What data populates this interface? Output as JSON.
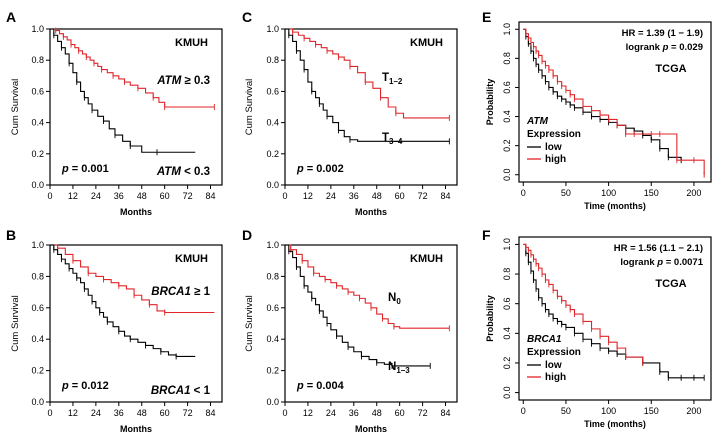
{
  "chart_data": [
    {
      "type": "line",
      "panel": "A",
      "cohort": "KMUH",
      "xlabel": "Months",
      "ylabel": "Cum Survival",
      "xlim": [
        0,
        90
      ],
      "ylim": [
        0,
        1.0
      ],
      "xticks": [
        "0",
        "12",
        "24",
        "36",
        "48",
        "60",
        "72",
        "84"
      ],
      "yticks": [
        "0.0",
        "0.2",
        "0.4",
        "0.6",
        "0.8",
        "1.0"
      ],
      "p_text": "= 0.001",
      "series": [
        {
          "name": "ATM ≥ 0.3",
          "gene": "ATM",
          "op": "≥ 0.3",
          "color": "#e0262a",
          "x": [
            0,
            3,
            5,
            7,
            9,
            11,
            13,
            15,
            17,
            19,
            21,
            23,
            25,
            27,
            30,
            33,
            36,
            39,
            42,
            46,
            50,
            54,
            57,
            60,
            72,
            86
          ],
          "y": [
            1.0,
            0.99,
            0.97,
            0.95,
            0.93,
            0.9,
            0.88,
            0.86,
            0.84,
            0.82,
            0.8,
            0.78,
            0.76,
            0.74,
            0.72,
            0.7,
            0.68,
            0.66,
            0.64,
            0.62,
            0.59,
            0.56,
            0.53,
            0.5,
            0.5,
            0.5
          ]
        },
        {
          "name": "ATM < 0.3",
          "gene": "ATM",
          "op": "< 0.3",
          "color": "#000000",
          "x": [
            0,
            2,
            4,
            6,
            8,
            10,
            12,
            14,
            16,
            18,
            20,
            22,
            25,
            28,
            31,
            34,
            38,
            42,
            48,
            56,
            76
          ],
          "y": [
            1.0,
            0.96,
            0.92,
            0.88,
            0.84,
            0.78,
            0.72,
            0.66,
            0.6,
            0.56,
            0.52,
            0.48,
            0.44,
            0.41,
            0.36,
            0.32,
            0.28,
            0.25,
            0.21,
            0.21,
            0.21
          ]
        }
      ]
    },
    {
      "type": "line",
      "panel": "C",
      "cohort": "KMUH",
      "xlabel": "Months",
      "ylabel": "Cum Survival",
      "xlim": [
        0,
        90
      ],
      "ylim": [
        0,
        1.0
      ],
      "xticks": [
        "0",
        "12",
        "24",
        "36",
        "48",
        "60",
        "72",
        "84"
      ],
      "yticks": [
        "0.0",
        "0.2",
        "0.4",
        "0.6",
        "0.8",
        "1.0"
      ],
      "p_text": "= 0.002",
      "series": [
        {
          "name": "T1–2",
          "main": "T",
          "sub": "1–2",
          "color": "#e0262a",
          "x": [
            0,
            4,
            7,
            10,
            13,
            16,
            19,
            22,
            25,
            28,
            31,
            34,
            38,
            42,
            46,
            50,
            54,
            58,
            62,
            86
          ],
          "y": [
            1.0,
            0.98,
            0.96,
            0.94,
            0.92,
            0.9,
            0.88,
            0.86,
            0.84,
            0.82,
            0.8,
            0.76,
            0.72,
            0.66,
            0.62,
            0.56,
            0.5,
            0.46,
            0.43,
            0.43
          ]
        },
        {
          "name": "T3–4",
          "main": "T",
          "sub": "3–4",
          "color": "#000000",
          "x": [
            0,
            2,
            4,
            6,
            8,
            10,
            12,
            14,
            16,
            18,
            20,
            22,
            25,
            28,
            31,
            34,
            38,
            86
          ],
          "y": [
            1.0,
            0.96,
            0.92,
            0.86,
            0.8,
            0.74,
            0.66,
            0.6,
            0.56,
            0.52,
            0.48,
            0.44,
            0.4,
            0.35,
            0.31,
            0.29,
            0.28,
            0.28
          ]
        }
      ]
    },
    {
      "type": "line",
      "panel": "E",
      "cohort": "TCGA",
      "xlabel": "Time (months)",
      "ylabel": "Probability",
      "xlim": [
        -5,
        220
      ],
      "ylim": [
        -0.05,
        1.05
      ],
      "xticks": [
        "0",
        "50",
        "100",
        "150",
        "200"
      ],
      "yticks": [
        "0.0",
        "0.2",
        "0.4",
        "0.6",
        "0.8",
        "1.0"
      ],
      "hr": "HR = 1.39 (1 − 1.9)",
      "logrank": "logrank",
      "p_text": "= 0.029",
      "legend_gene": "ATM",
      "legend_title": "Expression",
      "series": [
        {
          "name": "low",
          "color": "#000000",
          "x": [
            0,
            3,
            6,
            9,
            12,
            15,
            18,
            22,
            26,
            30,
            35,
            40,
            45,
            50,
            55,
            60,
            70,
            80,
            90,
            100,
            110,
            120,
            130,
            140,
            150,
            160,
            170,
            185
          ],
          "y": [
            1.0,
            0.95,
            0.9,
            0.85,
            0.8,
            0.76,
            0.72,
            0.68,
            0.64,
            0.6,
            0.57,
            0.54,
            0.52,
            0.5,
            0.48,
            0.46,
            0.43,
            0.4,
            0.38,
            0.36,
            0.34,
            0.32,
            0.3,
            0.27,
            0.24,
            0.18,
            0.12,
            0.1
          ]
        },
        {
          "name": "high",
          "color": "#e0262a",
          "x": [
            0,
            3,
            6,
            9,
            12,
            15,
            18,
            22,
            26,
            30,
            35,
            40,
            45,
            50,
            55,
            60,
            70,
            80,
            90,
            100,
            110,
            120,
            130,
            150,
            160,
            180,
            200,
            212
          ],
          "y": [
            1.0,
            0.97,
            0.94,
            0.91,
            0.88,
            0.85,
            0.82,
            0.78,
            0.75,
            0.72,
            0.68,
            0.64,
            0.61,
            0.58,
            0.55,
            0.52,
            0.47,
            0.44,
            0.41,
            0.38,
            0.34,
            0.28,
            0.28,
            0.28,
            0.28,
            0.1,
            0.1,
            0.0
          ]
        }
      ]
    },
    {
      "type": "line",
      "panel": "B",
      "cohort": "KMUH",
      "xlabel": "Months",
      "ylabel": "Cum Survival",
      "xlim": [
        0,
        90
      ],
      "ylim": [
        0,
        1.0
      ],
      "xticks": [
        "0",
        "12",
        "24",
        "36",
        "48",
        "60",
        "72",
        "84"
      ],
      "yticks": [
        "0.0",
        "0.2",
        "0.4",
        "0.6",
        "0.8",
        "1.0"
      ],
      "p_text": "= 0.012",
      "series": [
        {
          "name": "BRCA1 ≥ 1",
          "gene": "BRCA1",
          "op": "≥ 1",
          "color": "#e0262a",
          "x": [
            0,
            4,
            8,
            12,
            16,
            20,
            24,
            28,
            32,
            36,
            40,
            44,
            48,
            52,
            56,
            60,
            86
          ],
          "y": [
            1.0,
            0.98,
            0.94,
            0.9,
            0.86,
            0.82,
            0.8,
            0.78,
            0.76,
            0.74,
            0.72,
            0.68,
            0.65,
            0.62,
            0.58,
            0.57,
            0.57
          ]
        },
        {
          "name": "BRCA1 < 1",
          "gene": "BRCA1",
          "op": "< 1",
          "color": "#000000",
          "x": [
            0,
            2,
            4,
            6,
            8,
            10,
            12,
            14,
            16,
            18,
            20,
            22,
            24,
            26,
            28,
            30,
            33,
            36,
            39,
            42,
            46,
            50,
            54,
            58,
            62,
            66,
            76
          ],
          "y": [
            1.0,
            0.97,
            0.94,
            0.91,
            0.88,
            0.85,
            0.82,
            0.79,
            0.76,
            0.72,
            0.68,
            0.64,
            0.6,
            0.57,
            0.54,
            0.51,
            0.48,
            0.45,
            0.42,
            0.4,
            0.38,
            0.36,
            0.34,
            0.32,
            0.3,
            0.29,
            0.29
          ]
        }
      ]
    },
    {
      "type": "line",
      "panel": "D",
      "cohort": "KMUH",
      "xlabel": "Months",
      "ylabel": "Cum Survival",
      "xlim": [
        0,
        90
      ],
      "ylim": [
        0,
        1.0
      ],
      "xticks": [
        "0",
        "12",
        "24",
        "36",
        "48",
        "60",
        "72",
        "84"
      ],
      "yticks": [
        "0.0",
        "0.2",
        "0.4",
        "0.6",
        "0.8",
        "1.0"
      ],
      "p_text": "= 0.004",
      "series": [
        {
          "name": "N0",
          "main": "N",
          "sub": "0",
          "color": "#e0262a",
          "x": [
            0,
            3,
            6,
            9,
            12,
            15,
            18,
            21,
            24,
            27,
            30,
            33,
            36,
            39,
            42,
            45,
            48,
            51,
            54,
            57,
            60,
            86
          ],
          "y": [
            1.0,
            0.97,
            0.94,
            0.9,
            0.86,
            0.82,
            0.8,
            0.78,
            0.76,
            0.74,
            0.72,
            0.7,
            0.68,
            0.66,
            0.63,
            0.6,
            0.56,
            0.53,
            0.5,
            0.48,
            0.47,
            0.47
          ]
        },
        {
          "name": "N1–3",
          "main": "N",
          "sub": "1–3",
          "color": "#000000",
          "x": [
            0,
            2,
            4,
            6,
            8,
            10,
            12,
            14,
            16,
            18,
            20,
            22,
            24,
            27,
            30,
            33,
            36,
            40,
            44,
            48,
            52,
            56,
            60,
            76
          ],
          "y": [
            1.0,
            0.96,
            0.92,
            0.86,
            0.8,
            0.74,
            0.7,
            0.66,
            0.62,
            0.58,
            0.54,
            0.5,
            0.46,
            0.42,
            0.38,
            0.35,
            0.32,
            0.29,
            0.27,
            0.25,
            0.24,
            0.23,
            0.23,
            0.23
          ]
        }
      ]
    },
    {
      "type": "line",
      "panel": "F",
      "cohort": "TCGA",
      "xlabel": "Time (months)",
      "ylabel": "Probability",
      "xlim": [
        -5,
        220
      ],
      "ylim": [
        -0.05,
        1.05
      ],
      "xticks": [
        "0",
        "50",
        "100",
        "150",
        "200"
      ],
      "yticks": [
        "0.0",
        "0.2",
        "0.4",
        "0.6",
        "0.8",
        "1.0"
      ],
      "hr": "HR = 1.56 (1.1 − 2.1)",
      "logrank": "logrank",
      "p_text": "= 0.0071",
      "legend_gene": "BRCA1",
      "legend_title": "Expression",
      "series": [
        {
          "name": "low",
          "color": "#000000",
          "x": [
            0,
            3,
            6,
            9,
            12,
            15,
            18,
            22,
            26,
            30,
            35,
            40,
            45,
            50,
            60,
            70,
            80,
            90,
            100,
            110,
            120,
            140,
            160,
            170,
            185,
            200,
            212
          ],
          "y": [
            1.0,
            0.94,
            0.88,
            0.82,
            0.76,
            0.7,
            0.64,
            0.6,
            0.56,
            0.53,
            0.5,
            0.48,
            0.46,
            0.44,
            0.4,
            0.36,
            0.33,
            0.3,
            0.28,
            0.26,
            0.24,
            0.2,
            0.14,
            0.1,
            0.1,
            0.1,
            0.1
          ]
        },
        {
          "name": "high",
          "color": "#e0262a",
          "x": [
            0,
            3,
            6,
            9,
            12,
            15,
            18,
            22,
            26,
            30,
            35,
            40,
            45,
            50,
            55,
            60,
            70,
            80,
            90,
            100,
            110,
            120,
            140
          ],
          "y": [
            1.0,
            0.98,
            0.96,
            0.93,
            0.9,
            0.87,
            0.84,
            0.8,
            0.76,
            0.73,
            0.69,
            0.65,
            0.62,
            0.59,
            0.56,
            0.53,
            0.48,
            0.43,
            0.38,
            0.34,
            0.3,
            0.24,
            0.2
          ]
        }
      ]
    }
  ]
}
